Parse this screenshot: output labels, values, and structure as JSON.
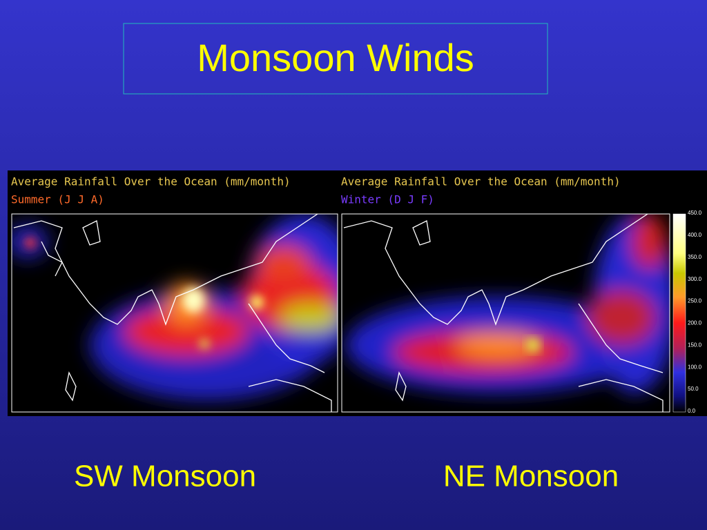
{
  "title": "Monsoon Winds",
  "panels": [
    {
      "heading": "Average Rainfall Over the Ocean (mm/month)",
      "season": "Summer (J J A)"
    },
    {
      "heading": "Average Rainfall Over the Ocean (mm/month)",
      "season": "Winter (D J F)"
    }
  ],
  "colorbar": {
    "labels": [
      "450.0",
      "400.0",
      "350.0",
      "300.0",
      "250.0",
      "200.0",
      "150.0",
      "100.0",
      "50.0",
      "0.0"
    ]
  },
  "captions": [
    "SW Monsoon",
    "NE Monsoon"
  ]
}
